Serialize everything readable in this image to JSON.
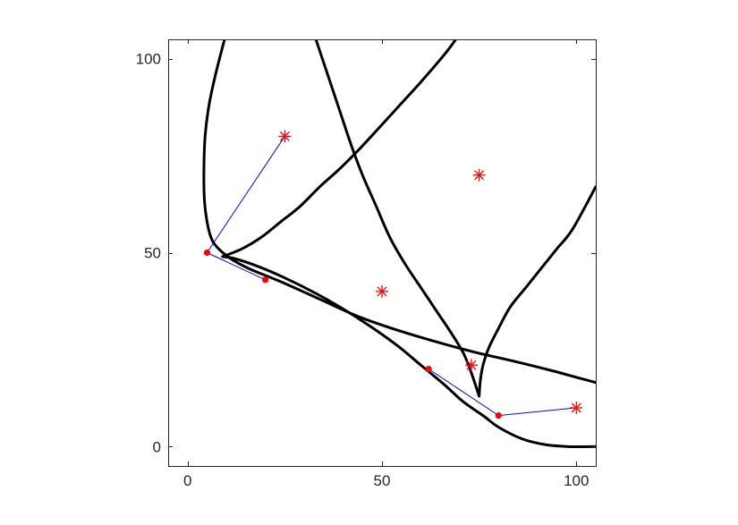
{
  "chart_data": {
    "type": "line",
    "title": "",
    "xlabel": "",
    "ylabel": "",
    "xlim": [
      -5,
      105
    ],
    "ylim": [
      -5,
      105
    ],
    "xticks": [
      0,
      50,
      100
    ],
    "yticks": [
      0,
      50,
      100
    ],
    "grid": false,
    "colors": {
      "curve": "#000000",
      "link": "#0000ff",
      "marker": "#ff0000",
      "axis": "#262626"
    },
    "curves": [
      {
        "points": [
          [
            9,
            49
          ],
          [
            12,
            48.5
          ],
          [
            18,
            46.5
          ],
          [
            25,
            43.5
          ],
          [
            33,
            39.5
          ],
          [
            40,
            35.5
          ],
          [
            47,
            31
          ],
          [
            54,
            26
          ],
          [
            60,
            21
          ],
          [
            66,
            16
          ],
          [
            71,
            11.5
          ],
          [
            76,
            8
          ],
          [
            80,
            5
          ],
          [
            86,
            2
          ],
          [
            92,
            0.5
          ],
          [
            98,
            0
          ],
          [
            105,
            0
          ]
        ]
      },
      {
        "points": [
          [
            9,
            49
          ],
          [
            14,
            51
          ],
          [
            19,
            54
          ],
          [
            24,
            58
          ],
          [
            29,
            62
          ],
          [
            34,
            67
          ],
          [
            39,
            71.5
          ],
          [
            44,
            76.5
          ],
          [
            50,
            83
          ],
          [
            55,
            88.5
          ],
          [
            60,
            94
          ],
          [
            66,
            101
          ],
          [
            69,
            105
          ]
        ]
      },
      {
        "points": [
          [
            33,
            105
          ],
          [
            36,
            96
          ],
          [
            39,
            87
          ],
          [
            42,
            78
          ],
          [
            45,
            70
          ],
          [
            48.5,
            62
          ],
          [
            52,
            54
          ],
          [
            56,
            47
          ],
          [
            60,
            41
          ],
          [
            64,
            35
          ],
          [
            68,
            29
          ],
          [
            71,
            24
          ],
          [
            73,
            19
          ],
          [
            75,
            13
          ]
        ]
      },
      {
        "points": [
          [
            75,
            13
          ],
          [
            75.3,
            17
          ],
          [
            76,
            21
          ],
          [
            77.5,
            25.5
          ],
          [
            80,
            30.5
          ],
          [
            83,
            36
          ],
          [
            87,
            41
          ],
          [
            91,
            46
          ],
          [
            95,
            51
          ],
          [
            99,
            56
          ],
          [
            105,
            67
          ]
        ]
      },
      {
        "points": [
          [
            9.5,
            105
          ],
          [
            7.2,
            96
          ],
          [
            5.5,
            88
          ],
          [
            4.5,
            80
          ],
          [
            4.2,
            72
          ],
          [
            4.3,
            64
          ],
          [
            5,
            58
          ],
          [
            6,
            54
          ],
          [
            7.5,
            51.5
          ],
          [
            11,
            48.5
          ],
          [
            16,
            45.8
          ],
          [
            24,
            42.5
          ],
          [
            34,
            38
          ],
          [
            44,
            33.5
          ],
          [
            54,
            30
          ],
          [
            64,
            27
          ],
          [
            74,
            24.3
          ],
          [
            84,
            22
          ],
          [
            94,
            19.5
          ],
          [
            105,
            16.5
          ]
        ]
      }
    ],
    "links": [
      {
        "points": [
          [
            5,
            50
          ],
          [
            25,
            80
          ]
        ]
      },
      {
        "points": [
          [
            5,
            50
          ],
          [
            20,
            43
          ]
        ]
      },
      {
        "points": [
          [
            62,
            20
          ],
          [
            80,
            8
          ],
          [
            100,
            10
          ]
        ]
      }
    ],
    "dots": [
      [
        5,
        50
      ],
      [
        20,
        43
      ],
      [
        62,
        20
      ],
      [
        80,
        8
      ]
    ],
    "stars": [
      [
        25,
        80
      ],
      [
        75,
        70
      ],
      [
        50,
        40
      ],
      [
        73,
        21
      ],
      [
        100,
        10
      ]
    ]
  }
}
